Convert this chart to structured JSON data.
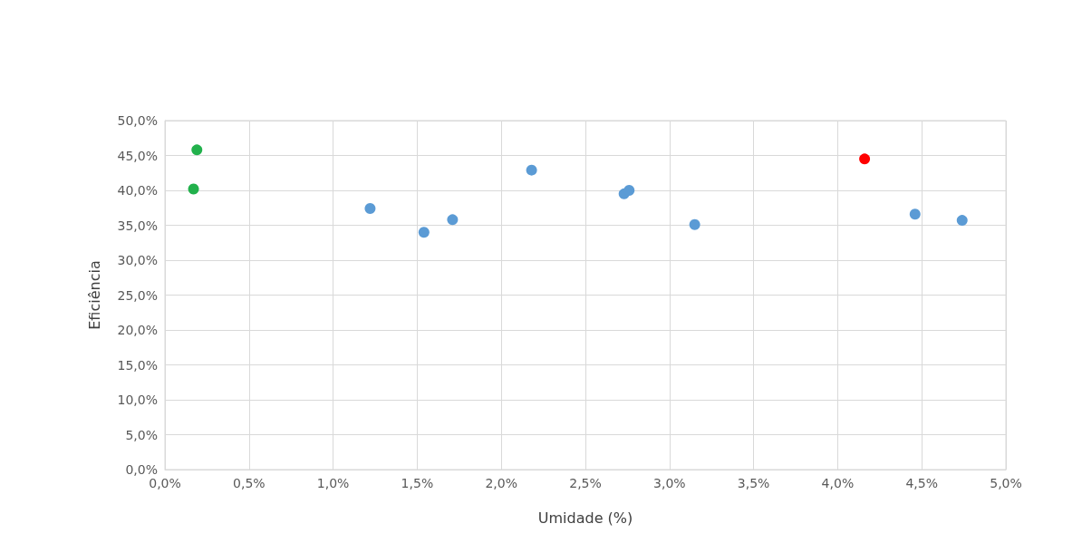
{
  "chart_data": {
    "type": "scatter",
    "xlabel": "Umidade (%)",
    "ylabel": "Eficiência",
    "xlim": [
      0,
      5
    ],
    "ylim": [
      0,
      50
    ],
    "xticks": [
      {
        "value": 0,
        "label": "0,0%"
      },
      {
        "value": 0.5,
        "label": "0,5%"
      },
      {
        "value": 1,
        "label": "1,0%"
      },
      {
        "value": 1.5,
        "label": "1,5%"
      },
      {
        "value": 2,
        "label": "2,0%"
      },
      {
        "value": 2.5,
        "label": "2,5%"
      },
      {
        "value": 3,
        "label": "3,0%"
      },
      {
        "value": 3.5,
        "label": "3,5%"
      },
      {
        "value": 4,
        "label": "4,0%"
      },
      {
        "value": 4.5,
        "label": "4,5%"
      },
      {
        "value": 5,
        "label": "5,0%"
      }
    ],
    "yticks": [
      {
        "value": 0,
        "label": "0,0%"
      },
      {
        "value": 5,
        "label": "5,0%"
      },
      {
        "value": 10,
        "label": "10,0%"
      },
      {
        "value": 15,
        "label": "15,0%"
      },
      {
        "value": 20,
        "label": "20,0%"
      },
      {
        "value": 25,
        "label": "25,0%"
      },
      {
        "value": 30,
        "label": "30,0%"
      },
      {
        "value": 35,
        "label": "35,0%"
      },
      {
        "value": 40,
        "label": "40,0%"
      },
      {
        "value": 45,
        "label": "45,0%"
      },
      {
        "value": 50,
        "label": "50,0%"
      }
    ],
    "grid": true,
    "marker": "circle",
    "series": [
      {
        "color": "#5b9bd5",
        "x": [
          1.22,
          1.54,
          1.71,
          2.18,
          2.73,
          2.76,
          3.15,
          4.46,
          4.74
        ],
        "values": [
          37.4,
          34.0,
          35.8,
          42.9,
          39.5,
          40.0,
          35.1,
          36.6,
          35.7
        ]
      },
      {
        "color": "#22b14c",
        "x": [
          0.17,
          0.19
        ],
        "values": [
          40.2,
          45.8
        ]
      },
      {
        "color": "#ff0000",
        "x": [
          4.16
        ],
        "values": [
          44.5
        ]
      }
    ]
  }
}
